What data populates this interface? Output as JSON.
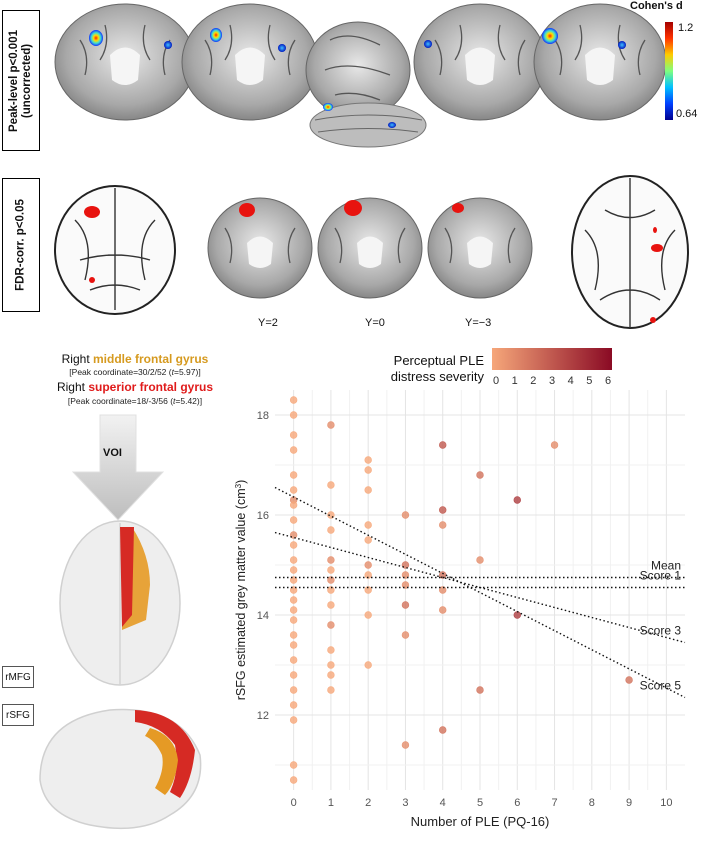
{
  "row1": {
    "label_line1": "Peak-level p<0.001",
    "label_line2": "(uncorrected)",
    "colorbar_title": "Cohen's d",
    "colorbar_max": "1.2",
    "colorbar_min": "0.64",
    "colorbar_colors": [
      "#a30000",
      "#ff3300",
      "#ffcc00",
      "#7fff7f",
      "#00c0ff",
      "#0040ff",
      "#00008f"
    ]
  },
  "row2": {
    "label": "FDR-corr. p<0.05",
    "slice_labels": [
      "Y=2",
      "Y=0",
      "Y=−3"
    ]
  },
  "regions": {
    "line1_prefix": "Right ",
    "line1_name": "middle frontal gyrus",
    "line1_peak_pre": "[Peak coordinate=30/2/52 (",
    "line1_peak_t": "t",
    "line1_peak_post": "=5.97)]",
    "line2_prefix": "Right ",
    "line2_name": "superior frontal gyrus",
    "line2_peak_pre": "[Peak coordinate=18/-3/56 (",
    "line2_peak_t": "t",
    "line2_peak_post": "=5.42)]"
  },
  "voi": {
    "label": "VOI"
  },
  "tags": {
    "rmfg": "rMFG",
    "rsfg": "rSFG",
    "rmfg_color": "#f2a93b",
    "rsfg_color": "#e3261f"
  },
  "legend": {
    "title_line1": "Perceptual PLE",
    "title_line2": "distress severity",
    "ticks": [
      "0",
      "1",
      "2",
      "3",
      "4",
      "5",
      "6"
    ],
    "color_low": "#f6a77a",
    "color_high": "#8a0a24"
  },
  "chart_data": {
    "type": "scatter",
    "xlabel": "Number of PLE (PQ-16)",
    "ylabel_main": "rSFG estimated grey matter value (cm",
    "ylabel_sup": "3",
    "ylabel_end": ")",
    "xlim": [
      -0.5,
      10.5
    ],
    "ylim": [
      10.5,
      18.5
    ],
    "x_ticks": [
      0,
      1,
      2,
      3,
      4,
      5,
      6,
      7,
      8,
      9,
      10
    ],
    "y_ticks": [
      12,
      14,
      16,
      18
    ],
    "grid": true,
    "points": [
      {
        "x": 0,
        "y": 18.3,
        "c": 0
      },
      {
        "x": 0,
        "y": 18.0,
        "c": 0
      },
      {
        "x": 0,
        "y": 17.6,
        "c": 0
      },
      {
        "x": 0,
        "y": 17.3,
        "c": 0
      },
      {
        "x": 0,
        "y": 16.8,
        "c": 0
      },
      {
        "x": 0,
        "y": 16.5,
        "c": 0
      },
      {
        "x": 0,
        "y": 16.3,
        "c": 1
      },
      {
        "x": 0,
        "y": 16.2,
        "c": 0
      },
      {
        "x": 0,
        "y": 15.9,
        "c": 0
      },
      {
        "x": 0,
        "y": 15.6,
        "c": 1
      },
      {
        "x": 0,
        "y": 15.4,
        "c": 0
      },
      {
        "x": 0,
        "y": 15.1,
        "c": 0
      },
      {
        "x": 0,
        "y": 14.9,
        "c": 0
      },
      {
        "x": 0,
        "y": 14.7,
        "c": 0
      },
      {
        "x": 0,
        "y": 14.5,
        "c": 0
      },
      {
        "x": 0,
        "y": 14.3,
        "c": 0
      },
      {
        "x": 0,
        "y": 14.1,
        "c": 0
      },
      {
        "x": 0,
        "y": 13.9,
        "c": 0
      },
      {
        "x": 0,
        "y": 13.6,
        "c": 0
      },
      {
        "x": 0,
        "y": 13.4,
        "c": 0
      },
      {
        "x": 0,
        "y": 13.1,
        "c": 0
      },
      {
        "x": 0,
        "y": 12.8,
        "c": 0
      },
      {
        "x": 0,
        "y": 12.5,
        "c": 0
      },
      {
        "x": 0,
        "y": 12.2,
        "c": 0
      },
      {
        "x": 0,
        "y": 11.9,
        "c": 0
      },
      {
        "x": 0,
        "y": 11.0,
        "c": 0
      },
      {
        "x": 0,
        "y": 10.7,
        "c": 0
      },
      {
        "x": 1,
        "y": 17.8,
        "c": 1
      },
      {
        "x": 1,
        "y": 16.6,
        "c": 0
      },
      {
        "x": 1,
        "y": 16.0,
        "c": 0
      },
      {
        "x": 1,
        "y": 15.7,
        "c": 0
      },
      {
        "x": 1,
        "y": 15.1,
        "c": 1
      },
      {
        "x": 1,
        "y": 14.9,
        "c": 0
      },
      {
        "x": 1,
        "y": 14.7,
        "c": 1
      },
      {
        "x": 1,
        "y": 14.5,
        "c": 0
      },
      {
        "x": 1,
        "y": 14.2,
        "c": 0
      },
      {
        "x": 1,
        "y": 13.8,
        "c": 1
      },
      {
        "x": 1,
        "y": 13.3,
        "c": 0
      },
      {
        "x": 1,
        "y": 13.0,
        "c": 0
      },
      {
        "x": 1,
        "y": 12.8,
        "c": 0
      },
      {
        "x": 1,
        "y": 12.5,
        "c": 0
      },
      {
        "x": 2,
        "y": 17.1,
        "c": 0
      },
      {
        "x": 2,
        "y": 16.9,
        "c": 0
      },
      {
        "x": 2,
        "y": 16.5,
        "c": 0
      },
      {
        "x": 2,
        "y": 15.8,
        "c": 0
      },
      {
        "x": 2,
        "y": 15.5,
        "c": 0
      },
      {
        "x": 2,
        "y": 15.0,
        "c": 1
      },
      {
        "x": 2,
        "y": 14.8,
        "c": 0
      },
      {
        "x": 2,
        "y": 14.5,
        "c": 0
      },
      {
        "x": 2,
        "y": 14.0,
        "c": 0
      },
      {
        "x": 2,
        "y": 13.0,
        "c": 0
      },
      {
        "x": 3,
        "y": 16.0,
        "c": 1
      },
      {
        "x": 3,
        "y": 15.0,
        "c": 2
      },
      {
        "x": 3,
        "y": 14.8,
        "c": 1
      },
      {
        "x": 3,
        "y": 14.6,
        "c": 1
      },
      {
        "x": 3,
        "y": 14.2,
        "c": 2
      },
      {
        "x": 3,
        "y": 13.6,
        "c": 1
      },
      {
        "x": 3,
        "y": 11.4,
        "c": 1
      },
      {
        "x": 4,
        "y": 17.4,
        "c": 3
      },
      {
        "x": 4,
        "y": 16.1,
        "c": 3
      },
      {
        "x": 4,
        "y": 15.8,
        "c": 1
      },
      {
        "x": 4,
        "y": 14.8,
        "c": 2
      },
      {
        "x": 4,
        "y": 14.5,
        "c": 1
      },
      {
        "x": 4,
        "y": 14.1,
        "c": 1
      },
      {
        "x": 4,
        "y": 11.7,
        "c": 2
      },
      {
        "x": 5,
        "y": 16.8,
        "c": 2
      },
      {
        "x": 5,
        "y": 15.1,
        "c": 1
      },
      {
        "x": 5,
        "y": 12.5,
        "c": 2
      },
      {
        "x": 6,
        "y": 16.3,
        "c": 4
      },
      {
        "x": 6,
        "y": 14.0,
        "c": 4
      },
      {
        "x": 7,
        "y": 17.4,
        "c": 1
      },
      {
        "x": 9,
        "y": 12.7,
        "c": 2
      }
    ],
    "lines": [
      {
        "name": "Mean",
        "x0": -0.5,
        "y0": 14.75,
        "x1": 10.5,
        "y1": 14.75
      },
      {
        "name": "Score 1",
        "x0": -0.5,
        "y0": 14.55,
        "x1": 10.5,
        "y1": 14.55
      },
      {
        "name": "Score 3",
        "x0": -0.5,
        "y0": 15.65,
        "x1": 10.5,
        "y1": 13.45
      },
      {
        "name": "Score 5",
        "x0": -0.5,
        "y0": 16.55,
        "x1": 10.5,
        "y1": 12.35
      }
    ]
  }
}
